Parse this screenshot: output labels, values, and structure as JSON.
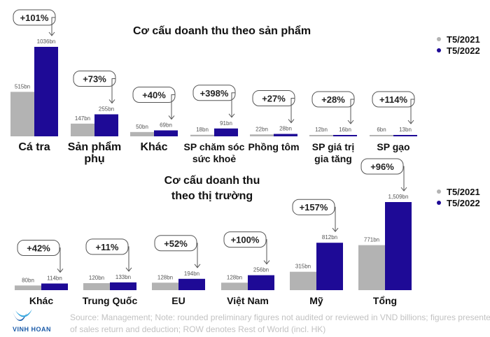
{
  "colors": {
    "t2021": "#b3b3b3",
    "t2022": "#1e0a96"
  },
  "chart_data": [
    {
      "type": "bar",
      "title": "Cơ cấu doanh thu theo sản phẩm",
      "series": [
        {
          "name": "T5/2021",
          "values": [
            515,
            147,
            50,
            18,
            22,
            12,
            6
          ]
        },
        {
          "name": "T5/2022",
          "values": [
            1036,
            255,
            69,
            91,
            28,
            16,
            13
          ]
        }
      ],
      "categories": [
        "Cá tra",
        "Sản phẩm|phụ",
        "Khác",
        "SP chăm sóc|sức khoẻ",
        "Phồng tôm",
        "SP giá trị|gia tăng",
        "SP gạo"
      ],
      "value_labels_2021": [
        "515bn",
        "147bn",
        "50bn",
        "18bn",
        "22bn",
        "12bn",
        "6bn"
      ],
      "value_labels_2022": [
        "1036bn",
        "255bn",
        "69bn",
        "91bn",
        "28bn",
        "16bn",
        "13bn"
      ],
      "growth_labels": [
        "+101%",
        "+73%",
        "+40%",
        "+398%",
        "+27%",
        "+28%",
        "+114%"
      ],
      "ylim": [
        0,
        1036
      ],
      "legend": "top-right"
    },
    {
      "type": "bar",
      "title": "Cơ cấu doanh thu|theo thị trường",
      "series": [
        {
          "name": "T5/2021",
          "values": [
            80,
            120,
            128,
            128,
            315,
            771
          ]
        },
        {
          "name": "T5/2022",
          "values": [
            114,
            133,
            194,
            256,
            812,
            1509
          ]
        }
      ],
      "categories": [
        "Khác",
        "Trung Quốc",
        "EU",
        "Việt Nam",
        "Mỹ",
        "Tổng"
      ],
      "value_labels_2021": [
        "80bn",
        "120bn",
        "128bn",
        "128bn",
        "315bn",
        "771bn"
      ],
      "value_labels_2022": [
        "114bn",
        "133bn",
        "194bn",
        "256bn",
        "812bn",
        "1,509bn"
      ],
      "growth_labels": [
        "+42%",
        "+11%",
        "+52%",
        "+100%",
        "+157%",
        "+96%"
      ],
      "ylim": [
        0,
        1509
      ],
      "legend": "top-right"
    }
  ],
  "footer": {
    "line1": "Source: Management; Note: rounded preliminary figures not audited or reviewed in VND billions; figures presented in",
    "line2": "of sales return and deduction; ROW denotes Rest of World (incl. HK)"
  },
  "logo": {
    "text": "VINH HOAN"
  }
}
